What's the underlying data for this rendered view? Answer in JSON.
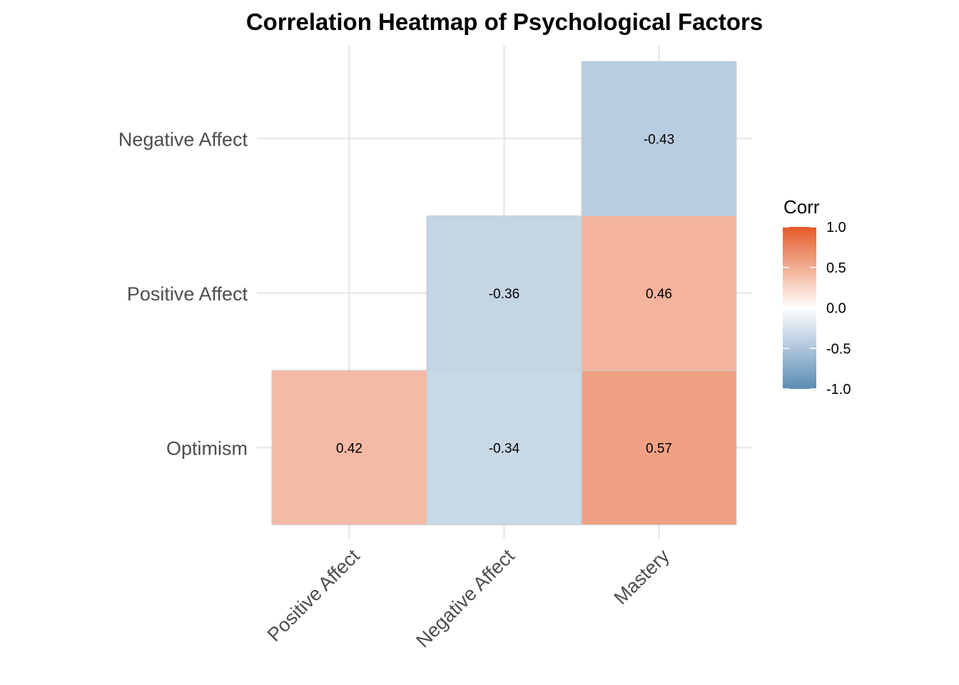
{
  "chart_data": {
    "type": "heatmap",
    "title": "Correlation Heatmap of Psychological Factors",
    "x_categories": [
      "Positive Affect",
      "Negative Affect",
      "Mastery"
    ],
    "y_categories": [
      "Optimism",
      "Positive Affect",
      "Negative Affect"
    ],
    "cells": [
      {
        "x": "Positive Affect",
        "y": "Optimism",
        "value": 0.42,
        "label": "0.42"
      },
      {
        "x": "Negative Affect",
        "y": "Optimism",
        "value": -0.34,
        "label": "-0.34"
      },
      {
        "x": "Mastery",
        "y": "Optimism",
        "value": 0.57,
        "label": "0.57"
      },
      {
        "x": "Negative Affect",
        "y": "Positive Affect",
        "value": -0.36,
        "label": "-0.36"
      },
      {
        "x": "Mastery",
        "y": "Positive Affect",
        "value": 0.46,
        "label": "0.46"
      },
      {
        "x": "Mastery",
        "y": "Negative Affect",
        "value": -0.43,
        "label": "-0.43"
      }
    ],
    "legend": {
      "title": "Corr",
      "placement": "right",
      "limits": [
        -1,
        1
      ],
      "breaks": [
        1.0,
        0.5,
        0.0,
        -0.5,
        -1.0
      ],
      "break_labels": [
        "1.0",
        "0.5",
        "0.0",
        "-0.5",
        "-1.0"
      ],
      "colors": {
        "low": "#5a8bb5",
        "mid": "#ffffff",
        "high": "#e55a28"
      }
    },
    "grid": true
  }
}
